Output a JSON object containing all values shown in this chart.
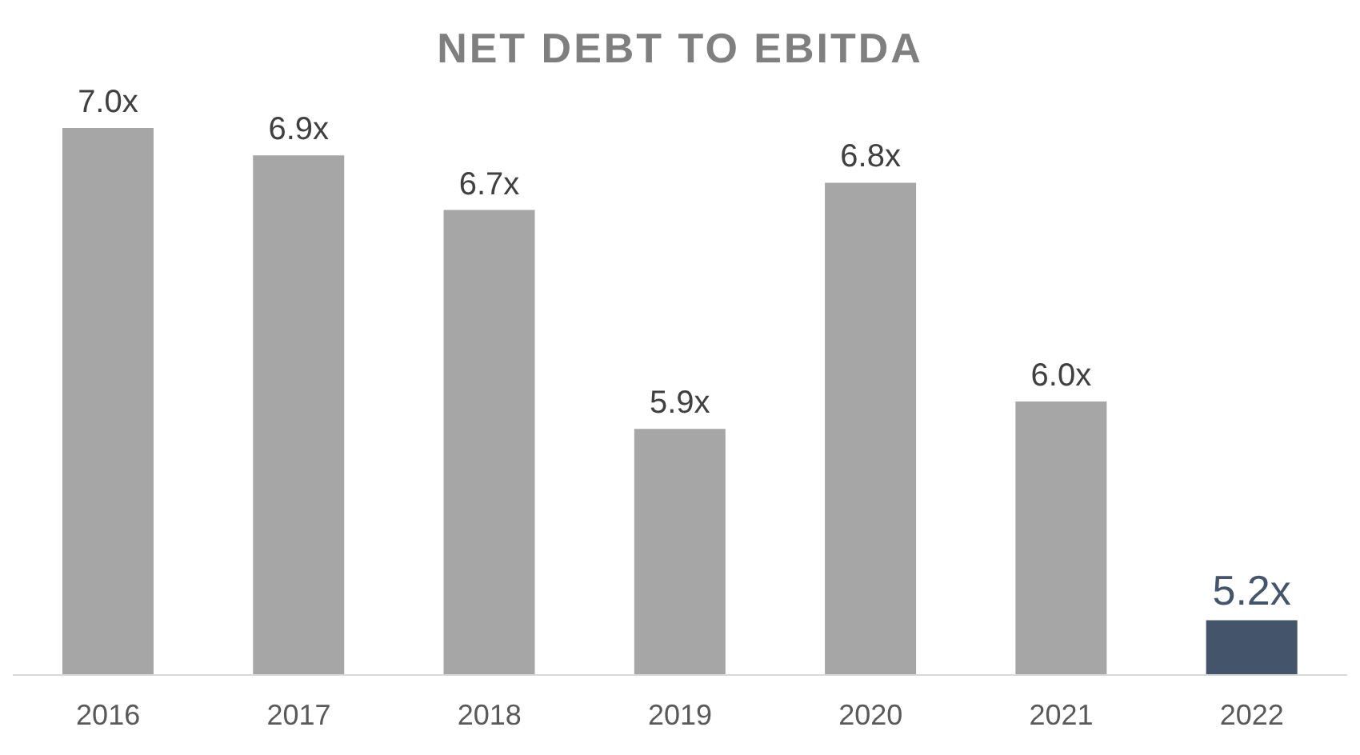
{
  "chart_data": {
    "type": "bar",
    "title": "NET DEBT TO EBITDA",
    "categories": [
      "2016",
      "2017",
      "2018",
      "2019",
      "2020",
      "2021",
      "2022"
    ],
    "values": [
      7.0,
      6.9,
      6.7,
      5.9,
      6.8,
      6.0,
      5.2
    ],
    "value_labels": [
      "7.0x",
      "6.9x",
      "6.7x",
      "5.9x",
      "6.8x",
      "6.0x",
      "5.2x"
    ],
    "colors": [
      "#a6a6a6",
      "#a6a6a6",
      "#a6a6a6",
      "#a6a6a6",
      "#a6a6a6",
      "#a6a6a6",
      "#44546a"
    ],
    "ylim": [
      5,
      7.0
    ],
    "tick_labels": "x",
    "grid": false,
    "legend": false
  }
}
